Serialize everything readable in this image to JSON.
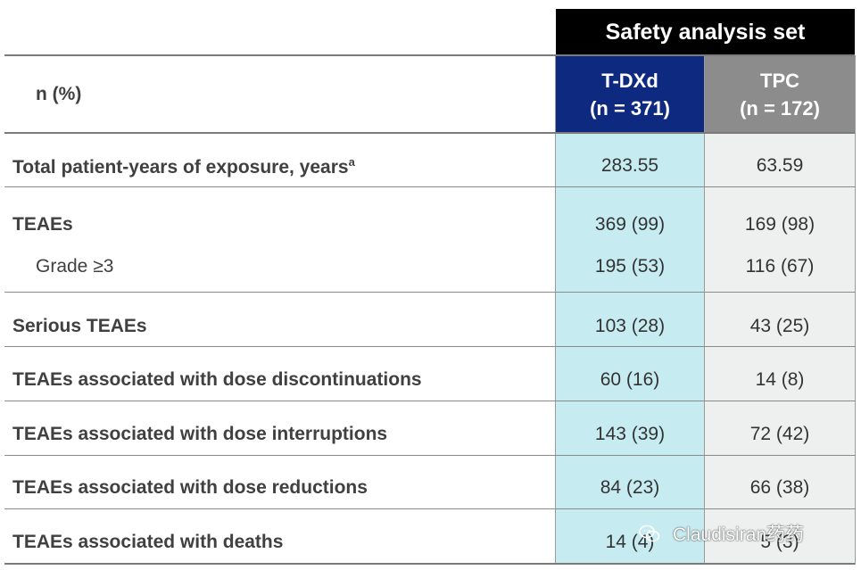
{
  "header": {
    "group_title": "Safety analysis set",
    "n_label": "n (%)",
    "columns": [
      {
        "name": "T-DXd",
        "n": "(n = 371)",
        "color": "#0e2a80"
      },
      {
        "name": "TPC",
        "n": "(n = 172)",
        "color": "#8c8c8c"
      }
    ]
  },
  "rows": [
    {
      "label": "Total patient-years of exposure, years",
      "sup": "a",
      "tdxd": "283.55",
      "tpc": "63.59"
    },
    {
      "label": "TEAEs",
      "tdxd": "369 (99)",
      "tpc": "169 (98)"
    },
    {
      "label": "Grade ≥3",
      "tdxd": "195 (53)",
      "tpc": "116 (67)"
    },
    {
      "label": "Serious TEAEs",
      "tdxd": "103 (28)",
      "tpc": "43 (25)"
    },
    {
      "label": "TEAEs associated with dose discontinuations",
      "tdxd": "60 (16)",
      "tpc": "14 (8)"
    },
    {
      "label": "TEAEs associated with dose interruptions",
      "tdxd": "143 (39)",
      "tpc": "72 (42)"
    },
    {
      "label": "TEAEs associated with dose reductions",
      "tdxd": "84 (23)",
      "tpc": "66 (38)"
    },
    {
      "label": "TEAEs associated with deaths",
      "tdxd": "14 (4)",
      "tpc": "5 (3)"
    }
  ],
  "watermark": {
    "text": "Claudisiran药药",
    "icon": "wechat-icon"
  }
}
